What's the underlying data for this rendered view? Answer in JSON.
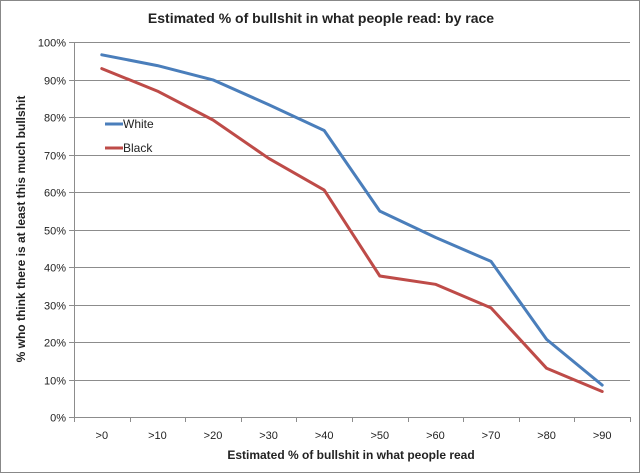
{
  "chart_data": {
    "type": "line",
    "title": "Estimated % of bullshit in what people read: by race",
    "xlabel": "Estimated % of bullshit in what people read",
    "ylabel": "% who think there is at least this much bullshit",
    "categories": [
      ">0",
      ">10",
      ">20",
      ">30",
      ">40",
      ">50",
      ">60",
      ">70",
      ">80",
      ">90"
    ],
    "ylim": [
      0,
      100
    ],
    "ytick_values": [
      0,
      10,
      20,
      30,
      40,
      50,
      60,
      70,
      80,
      90,
      100
    ],
    "ytick_labels": [
      "0%",
      "10%",
      "20%",
      "30%",
      "40%",
      "50%",
      "60%",
      "70%",
      "80%",
      "90%",
      "100%"
    ],
    "grid": true,
    "legend_position": "upper-left",
    "series": [
      {
        "name": "White",
        "color": "#4a7ebb",
        "values": [
          96.6,
          93.7,
          89.9,
          83.3,
          76.4,
          54.9,
          47.9,
          41.5,
          20.7,
          8.5
        ]
      },
      {
        "name": "Black",
        "color": "#be4b48",
        "values": [
          92.9,
          86.9,
          79.2,
          69.0,
          60.5,
          37.6,
          35.4,
          29.1,
          13.0,
          6.8
        ]
      }
    ]
  }
}
